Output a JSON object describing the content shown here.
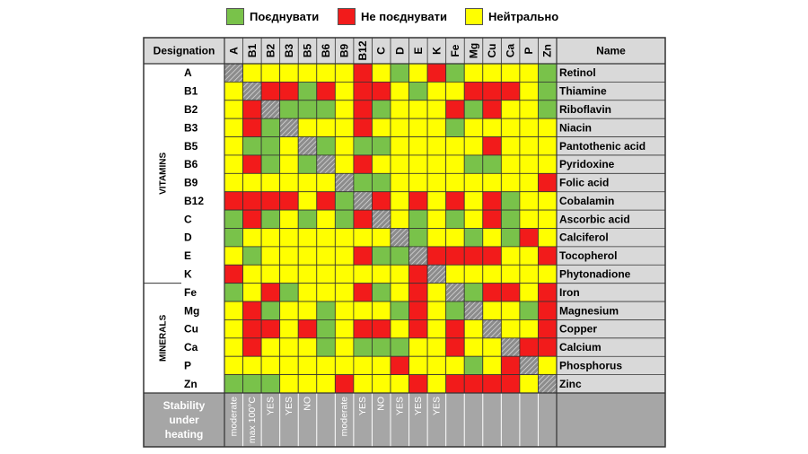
{
  "legend": {
    "combine": {
      "label": "Поєднувати",
      "color": "#79c24a"
    },
    "avoid": {
      "label": "Не поєднувати",
      "color": "#f21b1b"
    },
    "neutral": {
      "label": "Нейтрально",
      "color": "#ffff00"
    }
  },
  "colors": {
    "self": "#8c8c8c",
    "header_bg": "#d9d9d9",
    "footer_bg": "#a6a6a6"
  },
  "table": {
    "designation_header": "Designation",
    "name_header": "Name",
    "groups": [
      {
        "label": "VITAMINS",
        "rows": 12
      },
      {
        "label": "MINERALS",
        "rows": 6
      }
    ],
    "stability_label": [
      "Stability",
      "under",
      "heating"
    ]
  },
  "chart_data": {
    "type": "heatmap",
    "columns": [
      "A",
      "B1",
      "B2",
      "B3",
      "B5",
      "B6",
      "B9",
      "B12",
      "C",
      "D",
      "E",
      "K",
      "Fe",
      "Mg",
      "Cu",
      "Ca",
      "P",
      "Zn"
    ],
    "rows": [
      "A",
      "B1",
      "B2",
      "B3",
      "B5",
      "B6",
      "B9",
      "B12",
      "C",
      "D",
      "E",
      "K",
      "Fe",
      "Mg",
      "Cu",
      "Ca",
      "P",
      "Zn"
    ],
    "names": [
      "Retinol",
      "Thiamine",
      "Riboflavin",
      "Niacin",
      "Pantothenic acid",
      "Pyridoxine",
      "Folic acid",
      "Cobalamin",
      "Ascorbic acid",
      "Calciferol",
      "Tocopherol",
      "Phytonadione",
      "Iron",
      "Magnesium",
      "Copper",
      "Calcium",
      "Phosphorus",
      "Zinc"
    ],
    "value_legend": {
      "G": "Поєднувати",
      "R": "Не поєднувати",
      "Y": "Нейтрально",
      "X": "same element"
    },
    "matrix": [
      [
        "X",
        "Y",
        "Y",
        "Y",
        "Y",
        "Y",
        "Y",
        "R",
        "Y",
        "G",
        "Y",
        "R",
        "G",
        "Y",
        "Y",
        "Y",
        "Y",
        "G"
      ],
      [
        "Y",
        "X",
        "R",
        "R",
        "G",
        "R",
        "Y",
        "R",
        "R",
        "Y",
        "G",
        "Y",
        "Y",
        "R",
        "R",
        "R",
        "Y",
        "G"
      ],
      [
        "Y",
        "R",
        "X",
        "G",
        "G",
        "G",
        "Y",
        "R",
        "G",
        "Y",
        "Y",
        "Y",
        "R",
        "G",
        "R",
        "Y",
        "Y",
        "G"
      ],
      [
        "Y",
        "R",
        "G",
        "X",
        "Y",
        "Y",
        "Y",
        "R",
        "Y",
        "Y",
        "Y",
        "Y",
        "G",
        "Y",
        "Y",
        "Y",
        "Y",
        "Y"
      ],
      [
        "Y",
        "G",
        "G",
        "Y",
        "X",
        "G",
        "Y",
        "G",
        "G",
        "Y",
        "Y",
        "Y",
        "Y",
        "Y",
        "R",
        "Y",
        "Y",
        "Y"
      ],
      [
        "Y",
        "R",
        "G",
        "Y",
        "G",
        "X",
        "Y",
        "R",
        "Y",
        "Y",
        "Y",
        "Y",
        "Y",
        "G",
        "G",
        "Y",
        "Y",
        "Y"
      ],
      [
        "Y",
        "Y",
        "Y",
        "Y",
        "Y",
        "Y",
        "X",
        "G",
        "G",
        "Y",
        "Y",
        "Y",
        "Y",
        "Y",
        "Y",
        "Y",
        "Y",
        "R"
      ],
      [
        "R",
        "R",
        "R",
        "R",
        "Y",
        "R",
        "G",
        "X",
        "R",
        "Y",
        "R",
        "Y",
        "R",
        "Y",
        "R",
        "G",
        "Y",
        "Y"
      ],
      [
        "G",
        "R",
        "G",
        "Y",
        "G",
        "Y",
        "G",
        "R",
        "X",
        "Y",
        "G",
        "Y",
        "G",
        "Y",
        "R",
        "G",
        "Y",
        "Y"
      ],
      [
        "G",
        "Y",
        "Y",
        "Y",
        "Y",
        "Y",
        "Y",
        "Y",
        "Y",
        "X",
        "G",
        "Y",
        "Y",
        "G",
        "Y",
        "G",
        "R",
        "Y"
      ],
      [
        "Y",
        "G",
        "Y",
        "Y",
        "Y",
        "Y",
        "Y",
        "R",
        "G",
        "G",
        "X",
        "R",
        "R",
        "R",
        "R",
        "Y",
        "Y",
        "R"
      ],
      [
        "R",
        "Y",
        "Y",
        "Y",
        "Y",
        "Y",
        "Y",
        "Y",
        "Y",
        "Y",
        "R",
        "X",
        "Y",
        "Y",
        "Y",
        "Y",
        "Y",
        "Y"
      ],
      [
        "G",
        "Y",
        "R",
        "G",
        "Y",
        "Y",
        "Y",
        "R",
        "G",
        "Y",
        "R",
        "Y",
        "X",
        "G",
        "R",
        "R",
        "Y",
        "R"
      ],
      [
        "Y",
        "R",
        "G",
        "Y",
        "Y",
        "G",
        "Y",
        "Y",
        "Y",
        "G",
        "R",
        "Y",
        "G",
        "X",
        "Y",
        "Y",
        "G",
        "R"
      ],
      [
        "Y",
        "R",
        "R",
        "Y",
        "R",
        "G",
        "Y",
        "R",
        "R",
        "Y",
        "R",
        "Y",
        "R",
        "Y",
        "X",
        "Y",
        "Y",
        "R"
      ],
      [
        "Y",
        "R",
        "Y",
        "Y",
        "Y",
        "G",
        "Y",
        "G",
        "G",
        "G",
        "Y",
        "Y",
        "R",
        "Y",
        "Y",
        "X",
        "R",
        "R"
      ],
      [
        "Y",
        "Y",
        "Y",
        "Y",
        "Y",
        "Y",
        "Y",
        "Y",
        "Y",
        "R",
        "Y",
        "Y",
        "Y",
        "G",
        "Y",
        "R",
        "X",
        "Y"
      ],
      [
        "G",
        "G",
        "G",
        "Y",
        "Y",
        "Y",
        "R",
        "Y",
        "Y",
        "Y",
        "R",
        "Y",
        "R",
        "R",
        "R",
        "R",
        "Y",
        "X"
      ]
    ],
    "stability": [
      "moderate",
      "max 100°C",
      "YES",
      "YES",
      "NO",
      "",
      "moderate",
      "YES",
      "NO",
      "YES",
      "YES",
      "YES",
      "",
      "",
      "",
      "",
      "",
      ""
    ]
  }
}
